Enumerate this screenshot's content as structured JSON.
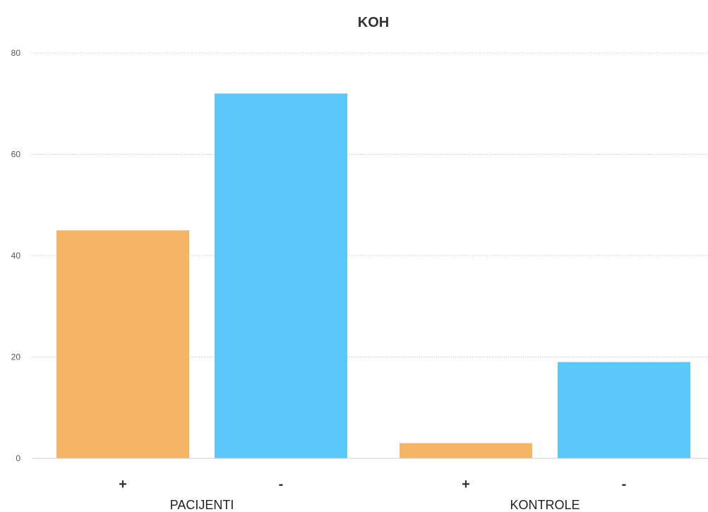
{
  "chart_data": {
    "type": "bar",
    "title": "KOH",
    "xlabel": "",
    "ylabel": "",
    "ylim": [
      0,
      80
    ],
    "yticks": [
      "0",
      "20",
      "40",
      "60",
      "80"
    ],
    "grid": true,
    "groups": [
      {
        "label": "PACIJENTI",
        "bars": [
          {
            "label": "+",
            "value": 45,
            "color": "#F5B565"
          },
          {
            "label": "-",
            "value": 72,
            "color": "#5AC8FA"
          }
        ]
      },
      {
        "label": "KONTROLE",
        "bars": [
          {
            "label": "+",
            "value": 3,
            "color": "#F5B565"
          },
          {
            "label": "-",
            "value": 19,
            "color": "#5AC8FA"
          }
        ]
      }
    ]
  }
}
